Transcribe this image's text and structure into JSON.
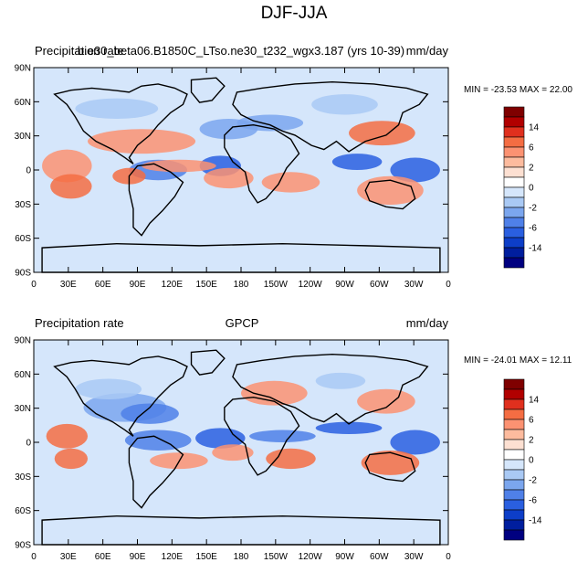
{
  "figure": {
    "title": "DJF-JJA",
    "panels": [
      {
        "left": "Precipitation rate",
        "center": "b.e30_beta06.B1850C_LTso.ne30_t232_wgx3.187 (yrs 10-39)",
        "right": "mm/day",
        "minmax": "MIN = -23.53 MAX =  22.00"
      },
      {
        "left": "Precipitation rate",
        "center": "GPCP",
        "right": "mm/day",
        "minmax": "MIN = -24.01 MAX =  12.11"
      }
    ],
    "lon_labels": [
      "0",
      "30E",
      "60E",
      "90E",
      "120E",
      "150E",
      "180",
      "150W",
      "120W",
      "90W",
      "60W",
      "30W",
      "0"
    ],
    "lat_labels": [
      "90N",
      "60N",
      "30N",
      "0",
      "30S",
      "60S",
      "90S"
    ],
    "colorbar": {
      "labels": [
        "14",
        "6",
        "2",
        "0",
        "-2",
        "-6",
        "-14"
      ],
      "colors": [
        "#7f0000",
        "#b10000",
        "#e0301e",
        "#f46d43",
        "#fc9272",
        "#fdbb9e",
        "#fde0d2",
        "#ffffff",
        "#d5e6fb",
        "#a9c9f4",
        "#7ba6ee",
        "#4f80e8",
        "#2a5fe0",
        "#0d3ec8",
        "#001e9e",
        "#000080"
      ]
    }
  }
}
